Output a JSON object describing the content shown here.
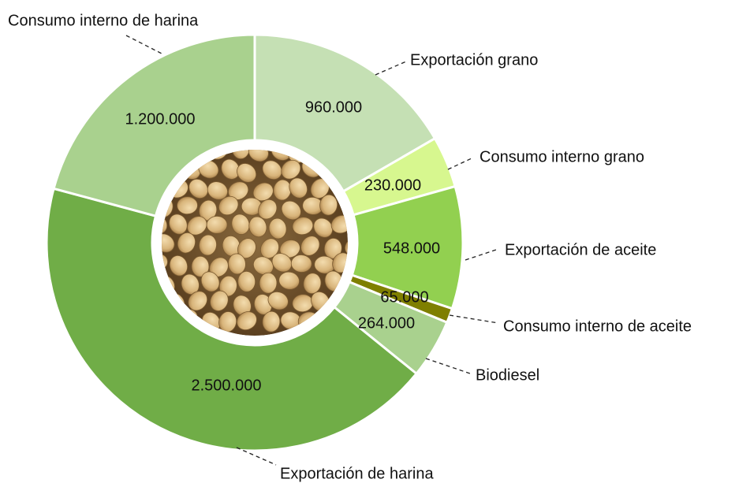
{
  "chart_data": {
    "type": "donut",
    "categories": [
      "Exportación grano",
      "Consumo interno grano",
      "Exportación de aceite",
      "Consumo interno de aceite",
      "Biodiesel",
      "Exportación de harina",
      "Consumo interno de harina"
    ],
    "values": [
      960000,
      230000,
      548000,
      65000,
      264000,
      2500000,
      1200000
    ],
    "value_labels": [
      "960.000",
      "230.000",
      "548.000",
      "65.000",
      "264.000",
      "2.500.000",
      "1.200.000"
    ],
    "colors": [
      "#c5e0b4",
      "#d7f78f",
      "#92d050",
      "#7f7f00",
      "#a9d18e",
      "#70ad47",
      "#a9d18e"
    ]
  }
}
